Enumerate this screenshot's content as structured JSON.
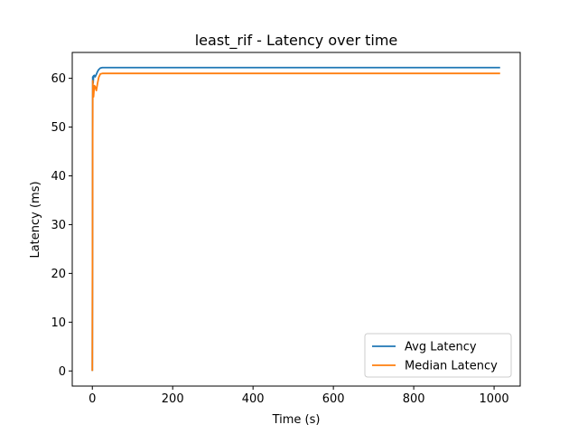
{
  "chart_data": {
    "type": "line",
    "title": "least_rif - Latency over time",
    "xlabel": "Time (s)",
    "ylabel": "Latency (ms)",
    "xlim": [
      -50,
      1065
    ],
    "ylim": [
      -3.1,
      65.3
    ],
    "xticks": [
      0,
      200,
      400,
      600,
      800,
      1000
    ],
    "yticks": [
      0,
      10,
      20,
      30,
      40,
      50,
      60
    ],
    "grid": false,
    "legend_position": "lower right",
    "series": [
      {
        "name": "Avg Latency",
        "color": "#1f77b4",
        "x": [
          0,
          1,
          2,
          3,
          5,
          7,
          10,
          13,
          16,
          20,
          25,
          40,
          100,
          300,
          600,
          1000,
          1015
        ],
        "y": [
          0,
          60.3,
          59.0,
          60.5,
          60.6,
          60.3,
          60.8,
          61.4,
          61.8,
          62.1,
          62.2,
          62.2,
          62.2,
          62.2,
          62.2,
          62.2,
          62.2
        ]
      },
      {
        "name": "Median Latency",
        "color": "#ff7f0e",
        "x": [
          0,
          1,
          2,
          3,
          5,
          7,
          10,
          13,
          16,
          20,
          25,
          40,
          100,
          300,
          600,
          1000,
          1015
        ],
        "y": [
          0,
          59.5,
          57.0,
          56.2,
          58.5,
          58.3,
          57.5,
          59.0,
          60.2,
          60.9,
          61.0,
          61.0,
          61.0,
          61.0,
          61.0,
          61.0,
          61.0
        ]
      }
    ]
  }
}
